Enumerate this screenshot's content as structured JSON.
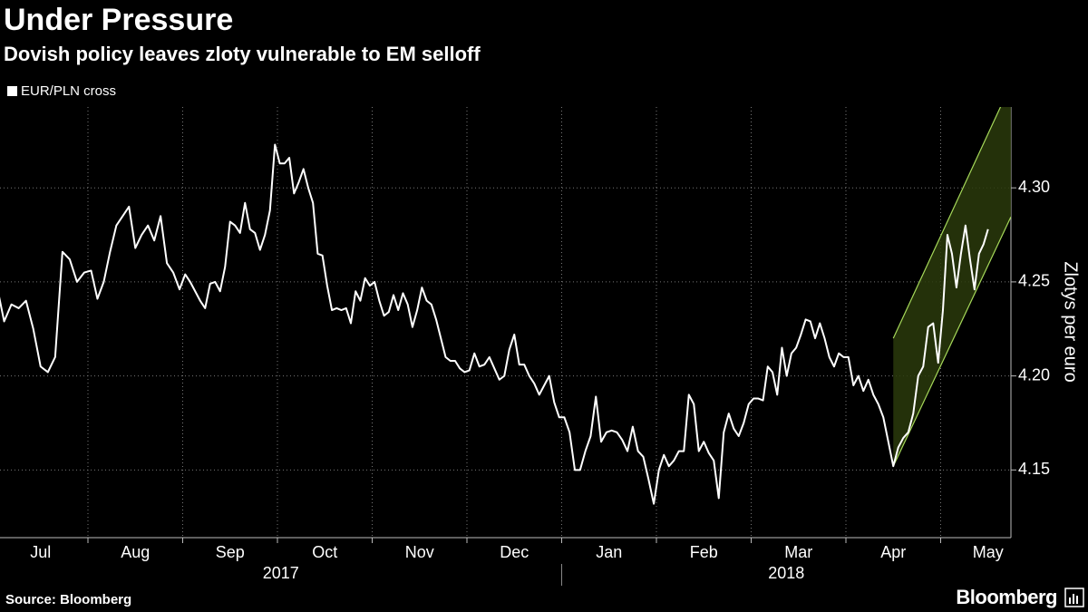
{
  "chart_data": {
    "type": "line",
    "title": "Under Pressure",
    "subtitle": "Dovish policy leaves zloty vulnerable to EM selloff",
    "y_label": "Zlotys per euro",
    "source": "Source: Bloomberg",
    "brand": "Bloomberg",
    "groups": [
      {
        "label": "2017",
        "categories": [
          "Jul",
          "Aug",
          "Sep",
          "Oct",
          "Nov",
          "Dec"
        ]
      },
      {
        "label": "2018",
        "categories": [
          "Jan",
          "Feb",
          "Mar",
          "Apr",
          "May"
        ]
      }
    ],
    "series": [
      {
        "name": "EUR/PLN cross",
        "color": "#ffffff",
        "values": [
          [
            4.248,
            4.229,
            4.238,
            4.236,
            4.24,
            4.225,
            4.205,
            4.202,
            4.21,
            4.266,
            4.262,
            4.25,
            4.255
          ],
          [
            4.256,
            4.241,
            4.25,
            4.266,
            4.28,
            4.285,
            4.29,
            4.268,
            4.275,
            4.28,
            4.272,
            4.285,
            4.26,
            4.255,
            4.246
          ],
          [
            4.254,
            4.25,
            4.245,
            4.24,
            4.236,
            4.249,
            4.25,
            4.245,
            4.258,
            4.282,
            4.28,
            4.276,
            4.292,
            4.278,
            4.276,
            4.267,
            4.275,
            4.288,
            4.323
          ],
          [
            4.313,
            4.313,
            4.316,
            4.297,
            4.303,
            4.31,
            4.3,
            4.292,
            4.265,
            4.264,
            4.248,
            4.235,
            4.236,
            4.235,
            4.236,
            4.228,
            4.245,
            4.24,
            4.252,
            4.248
          ],
          [
            4.25,
            4.24,
            4.232,
            4.234,
            4.243,
            4.235,
            4.244,
            4.238,
            4.226,
            4.235,
            4.247,
            4.24,
            4.238,
            4.23,
            4.22,
            4.21,
            4.208,
            4.208,
            4.204,
            4.202
          ],
          [
            4.203,
            4.212,
            4.205,
            4.206,
            4.21,
            4.204,
            4.198,
            4.2,
            4.214,
            4.222,
            4.206,
            4.206,
            4.2,
            4.196,
            4.19,
            4.195,
            4.2,
            4.186,
            4.178
          ],
          [
            4.178,
            4.17,
            4.15,
            4.15,
            4.16,
            4.168,
            4.189,
            4.165,
            4.17,
            4.171,
            4.17,
            4.166,
            4.16,
            4.173,
            4.16,
            4.157,
            4.145,
            4.132
          ],
          [
            4.15,
            4.158,
            4.152,
            4.155,
            4.16,
            4.16,
            4.19,
            4.185,
            4.16,
            4.165,
            4.159,
            4.155,
            4.135,
            4.17,
            4.18,
            4.172,
            4.168,
            4.175,
            4.185
          ],
          [
            4.188,
            4.188,
            4.187,
            4.205,
            4.202,
            4.19,
            4.215,
            4.2,
            4.212,
            4.215,
            4.222,
            4.23,
            4.229,
            4.22,
            4.228,
            4.22,
            4.21,
            4.205,
            4.212,
            4.21
          ],
          [
            4.21,
            4.195,
            4.2,
            4.192,
            4.198,
            4.19,
            4.185,
            4.178,
            4.165,
            4.152,
            4.162,
            4.167,
            4.17,
            4.18,
            4.2,
            4.205,
            4.226,
            4.228,
            4.207
          ],
          [
            4.235,
            4.275,
            4.265,
            4.247,
            4.265,
            4.28,
            4.262,
            4.246,
            4.265,
            4.27,
            4.278,
            null,
            null,
            null,
            null,
            null,
            null,
            null,
            null,
            null,
            null
          ]
        ]
      }
    ],
    "channel": {
      "start": "Apr",
      "lower": [
        4.152,
        4.2846
      ],
      "upper": [
        4.22,
        4.355
      ],
      "color": "#a6d95a",
      "fill": "#2a3a0c"
    },
    "ylim": [
      4.114,
      4.343
    ],
    "yticks": [
      {
        "value": 4.15,
        "label": "4.15"
      },
      {
        "value": 4.2,
        "label": "4.20"
      },
      {
        "value": 4.25,
        "label": "4.25"
      },
      {
        "value": 4.3,
        "label": "4.30"
      }
    ],
    "grid": true,
    "legend": "top-left"
  }
}
